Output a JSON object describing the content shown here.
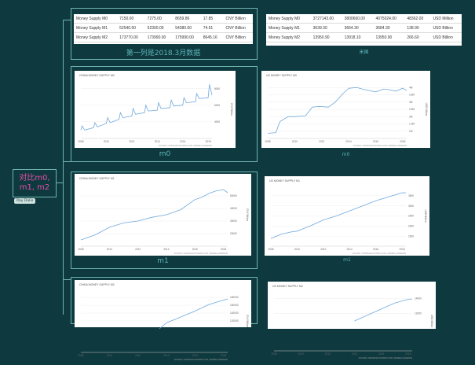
{
  "root": {
    "label_line1": "对比m0,",
    "label_line2": "m1, m2",
    "tag": "Ray Dalio"
  },
  "china_table": {
    "rows": [
      [
        "Money Supply M0",
        "7150.00",
        "7275.00",
        "8659.86",
        "17.85",
        "CNY Billion"
      ],
      [
        "Money Supply M1",
        "52540.00",
        "52300.00",
        "54380.00",
        "74.51",
        "CNY Billion"
      ],
      [
        "Money Supply M2",
        "173770.00",
        "173990.00",
        "175990.00",
        "8645.16",
        "CNY Billion"
      ]
    ],
    "caption": "第一列是2018.3月数据"
  },
  "us_table": {
    "rows": [
      [
        "Money Supply M0",
        "3727143.00",
        "3800660.00",
        "4075024.00",
        "48362.00",
        "USD Million"
      ],
      [
        "Money Supply M1",
        "3639.30",
        "3664.30",
        "3684.30",
        "138.90",
        "USD Billion"
      ],
      [
        "Money Supply M2",
        "13950.90",
        "13918.10",
        "13950.90",
        "266.60",
        "USD Billion"
      ]
    ],
    "caption": "米国"
  },
  "chart_captions": {
    "m0": "m0",
    "m1": "m1"
  },
  "chart_data": [
    {
      "type": "line",
      "title": "CHINA MONEY SUPPLY M0",
      "ylabel": "CNY Billion",
      "xlim": [
        2008,
        2018.3
      ],
      "ylim": [
        2000,
        9000
      ],
      "yticks": [
        4000,
        6000,
        8000
      ],
      "xticks": [
        "2008",
        "2010",
        "2012",
        "2014",
        "2016",
        "2018"
      ],
      "series": [
        {
          "x": [
            2008,
            2008.1,
            2008.3,
            2009,
            2009.1,
            2009.3,
            2010,
            2010.1,
            2010.3,
            2011,
            2011.1,
            2011.3,
            2012,
            2012.1,
            2012.3,
            2013,
            2013.1,
            2013.3,
            2014,
            2014.1,
            2014.3,
            2015,
            2015.1,
            2015.3,
            2016,
            2016.1,
            2016.3,
            2017,
            2017.1,
            2017.3,
            2018,
            2018.1,
            2018.3
          ],
          "y": [
            3000,
            3500,
            3000,
            3300,
            3900,
            3400,
            3800,
            4500,
            3900,
            4300,
            5100,
            4500,
            4700,
            5600,
            4900,
            5100,
            6000,
            5300,
            5400,
            6300,
            5600,
            5700,
            6600,
            5900,
            6000,
            6900,
            6300,
            6400,
            7400,
            6800,
            6900,
            8500,
            7200
          ]
        }
      ]
    },
    {
      "type": "line",
      "title": "US MONEY SUPPLY M0",
      "ylabel": "USD Million",
      "xlim": [
        2008,
        2018.3
      ],
      "ylim": [
        500000,
        4500000
      ],
      "yticks": [
        1000000,
        1500000,
        2000000,
        2500000,
        3000000,
        3500000,
        4000000
      ],
      "xticks": [
        "2008",
        "2010",
        "2012",
        "2014",
        "2016",
        "2018"
      ],
      "series": [
        {
          "x": [
            2008,
            2008.6,
            2008.9,
            2009.5,
            2010,
            2010.8,
            2011.3,
            2011.8,
            2012.5,
            2013,
            2013.6,
            2014,
            2014.6,
            2015,
            2015.5,
            2016,
            2016.6,
            2017,
            2017.5,
            2018,
            2018.3
          ],
          "y": [
            850000,
            900000,
            1650000,
            2000000,
            2000000,
            2050000,
            2650000,
            2700000,
            2650000,
            3000000,
            3600000,
            3950000,
            4000000,
            3900000,
            3800000,
            3700000,
            3900000,
            3850000,
            3750000,
            3950000,
            3800000
          ]
        }
      ]
    },
    {
      "type": "line",
      "title": "CHINA MONEY SUPPLY M1",
      "ylabel": "CNY Billion",
      "xlim": [
        2008,
        2018.3
      ],
      "ylim": [
        10000,
        60000
      ],
      "yticks": [
        20000,
        30000,
        40000,
        50000
      ],
      "xticks": [
        "2008",
        "2010",
        "2012",
        "2014",
        "2016",
        "2018"
      ],
      "series": [
        {
          "x": [
            2008,
            2009,
            2010,
            2011,
            2012,
            2013,
            2014,
            2015,
            2016,
            2016.5,
            2017,
            2017.5,
            2018,
            2018.3
          ],
          "y": [
            15000,
            19000,
            25000,
            28500,
            30000,
            33000,
            35000,
            39000,
            47000,
            49000,
            52000,
            54000,
            55000,
            52500
          ]
        }
      ]
    },
    {
      "type": "line",
      "title": "US MONEY SUPPLY M1",
      "ylabel": "USD Billion",
      "xlim": [
        2008,
        2018.3
      ],
      "ylim": [
        1000,
        4000
      ],
      "yticks": [
        1500,
        2000,
        2500,
        3000,
        3500
      ],
      "xticks": [
        "2008",
        "2010",
        "2012",
        "2014",
        "2016",
        "2018"
      ],
      "series": [
        {
          "x": [
            2008,
            2008.8,
            2009.5,
            2010,
            2011,
            2011.5,
            2012,
            2013,
            2014,
            2015,
            2016,
            2017,
            2018,
            2018.3
          ],
          "y": [
            1380,
            1600,
            1700,
            1750,
            2000,
            2150,
            2300,
            2500,
            2750,
            3000,
            3250,
            3450,
            3650,
            3640
          ]
        }
      ]
    },
    {
      "type": "line",
      "title": "CHINA MONEY SUPPLY M2",
      "ylabel": "CNY Billion",
      "xlim": [
        2008,
        2018.3
      ],
      "ylim": [
        40000,
        200000
      ],
      "yticks": [
        120000,
        140000,
        160000,
        180000
      ],
      "xticks": [
        "2008",
        "2010",
        "2012",
        "2014",
        "2016",
        "2018"
      ],
      "series": [
        {
          "x": [
            2013.5,
            2014,
            2015,
            2016,
            2017,
            2018,
            2018.3
          ],
          "y": [
            100000,
            115000,
            130000,
            145000,
            162000,
            173000,
            176000
          ]
        }
      ]
    },
    {
      "type": "line",
      "title": "US MONEY SUPPLY M2",
      "ylabel": "USD Billion",
      "xlim": [
        2008,
        2018.3
      ],
      "ylim": [
        7000,
        15000
      ],
      "yticks": [
        12000,
        14000
      ],
      "xticks": [
        "2008",
        "2010",
        "2012",
        "2014",
        "2016",
        "2018"
      ],
      "series": [
        {
          "x": [
            2014,
            2015,
            2016,
            2017,
            2018,
            2018.3
          ],
          "y": [
            11000,
            11800,
            12600,
            13400,
            13900,
            13950
          ]
        }
      ]
    }
  ],
  "source_note": "SOURCE: TRADINGECONOMICS.COM | FEDERAL RESERVE",
  "colors": {
    "background": "#0e3a3f",
    "line": "#6fa8dc",
    "root_text": "#e24ca6",
    "caption": "#5fb3b8",
    "border": "#6fb3b0"
  }
}
